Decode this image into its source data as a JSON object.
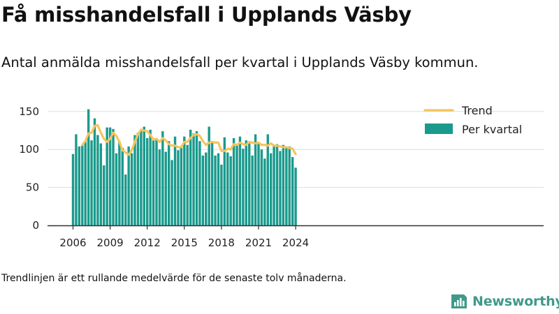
{
  "title": "Få misshandelsfall i Upplands Väsby",
  "subtitle": "Antal anmälda misshandelsfall per kvartal i Upplands Väsby kommun.",
  "footnote": "Trendlinjen är ett rullande medelvärde för de senaste tolv månaderna.",
  "brand": {
    "name": "Newsworthy",
    "icon": "newsworthy-logo-icon",
    "color": "#3f9a8a"
  },
  "chart_data": {
    "type": "bar",
    "title": "",
    "xlabel": "",
    "ylabel": "",
    "ylim": [
      0,
      160
    ],
    "yticks": [
      0,
      50,
      100,
      150
    ],
    "xticks": [
      "2006",
      "2009",
      "2012",
      "2015",
      "2018",
      "2021",
      "2024"
    ],
    "grid": true,
    "legend_position": "top-right",
    "colors": {
      "bars": "#1a9a8c",
      "trend": "#f6c45c",
      "grid": "#dddddd",
      "axis": "#333333"
    },
    "start": {
      "year": 2006,
      "quarter": 1
    },
    "series": [
      {
        "name": "Per kvartal",
        "kind": "bar",
        "values": [
          94,
          120,
          104,
          105,
          111,
          153,
          112,
          141,
          119,
          108,
          79,
          129,
          129,
          127,
          95,
          111,
          102,
          67,
          104,
          95,
          119,
          122,
          126,
          130,
          115,
          126,
          112,
          115,
          100,
          124,
          97,
          111,
          86,
          117,
          99,
          104,
          117,
          106,
          126,
          121,
          124,
          111,
          92,
          96,
          130,
          111,
          92,
          95,
          80,
          116,
          96,
          91,
          115,
          105,
          117,
          101,
          112,
          108,
          92,
          120,
          108,
          100,
          88,
          120,
          95,
          106,
          107,
          98,
          106,
          102,
          104,
          90,
          76
        ]
      },
      {
        "name": "Trend",
        "kind": "line",
        "values": [
          null,
          null,
          null,
          106,
          111,
          121,
          122,
          131,
          132,
          122,
          114,
          110,
          114,
          122,
          118,
          110,
          99,
          96,
          93,
          99,
          110,
          120,
          126,
          125,
          124,
          119,
          113,
          114,
          110,
          115,
          112,
          107,
          105,
          105,
          103,
          103,
          110,
          110,
          115,
          119,
          120,
          118,
          111,
          106,
          109,
          110,
          109,
          109,
          98,
          98,
          101,
          100,
          107,
          106,
          109,
          107,
          106,
          110,
          109,
          108,
          109,
          106,
          106,
          105,
          108,
          105,
          105,
          104,
          103,
          103,
          102,
          101,
          94
        ]
      }
    ]
  }
}
